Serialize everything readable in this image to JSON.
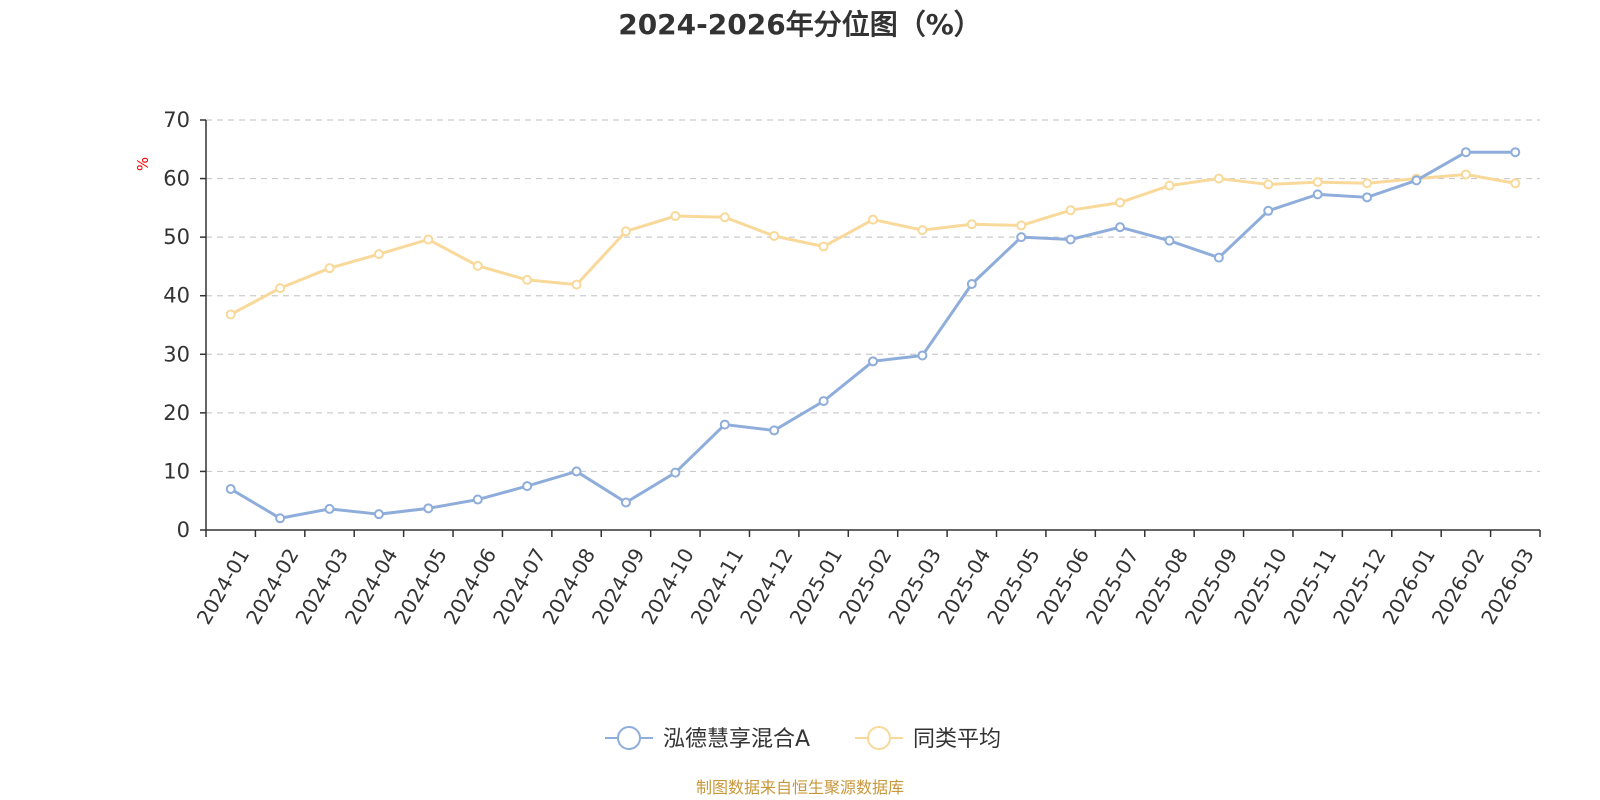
{
  "chart_data": {
    "type": "line",
    "title": "2024-2026年分位图（%）",
    "ylabel": "%",
    "xlabel": "",
    "ylim": [
      0,
      70
    ],
    "yticks": [
      0,
      10,
      20,
      30,
      40,
      50,
      60,
      70
    ],
    "grid": true,
    "legend_position": "bottom-center",
    "categories": [
      "2024-01",
      "2024-02",
      "2024-03",
      "2024-04",
      "2024-05",
      "2024-06",
      "2024-07",
      "2024-08",
      "2024-09",
      "2024-10",
      "2024-11",
      "2024-12",
      "2025-01",
      "2025-02",
      "2025-03",
      "2025-04",
      "2025-05",
      "2025-06",
      "2025-07",
      "2025-08",
      "2025-09",
      "2025-10",
      "2025-11",
      "2025-12",
      "2026-01",
      "2026-02",
      "2026-03"
    ],
    "series": [
      {
        "name": "泓德慧享混合A",
        "color": "#8eaddb",
        "values": [
          7.0,
          2.0,
          3.6,
          2.7,
          3.7,
          5.2,
          7.5,
          10.0,
          4.7,
          9.8,
          18.0,
          17.0,
          22.0,
          28.8,
          29.8,
          42.0,
          50.0,
          49.6,
          51.7,
          49.4,
          46.5,
          54.5,
          57.3,
          56.8,
          59.7,
          64.5,
          64.5
        ]
      },
      {
        "name": "同类平均",
        "color": "#f9d99a",
        "values": [
          36.8,
          41.3,
          44.7,
          47.1,
          49.6,
          45.1,
          42.7,
          41.9,
          51.0,
          53.6,
          53.4,
          50.2,
          48.4,
          53.0,
          51.2,
          52.2,
          52.0,
          54.6,
          55.9,
          58.8,
          60.0,
          59.0,
          59.4,
          59.2,
          60.0,
          60.7,
          59.2
        ]
      }
    ]
  },
  "source_note": "制图数据来自恒生聚源数据库"
}
